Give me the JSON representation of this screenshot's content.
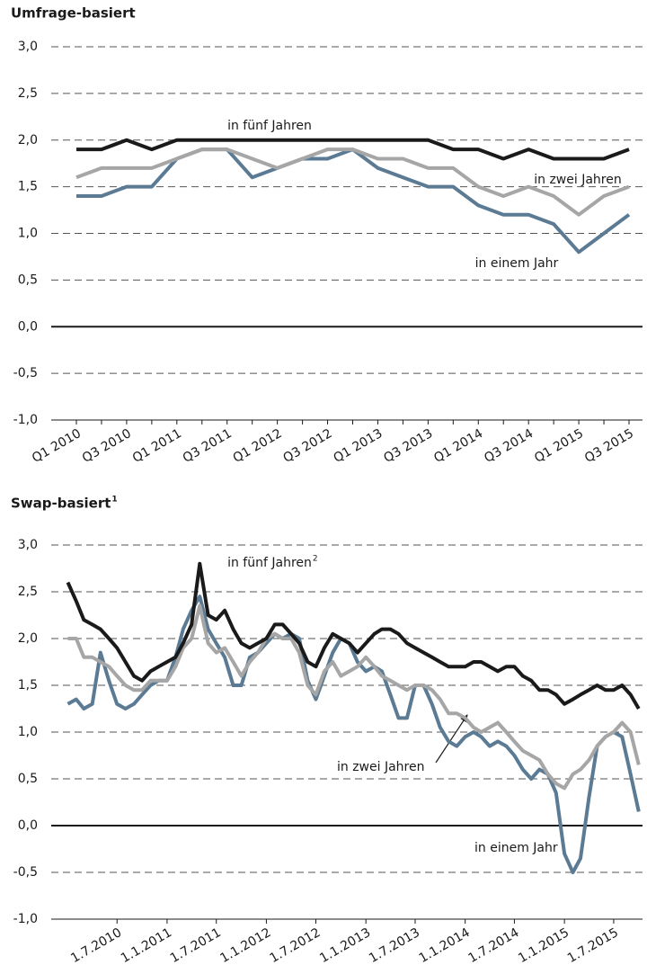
{
  "chart_data": [
    {
      "type": "line",
      "title": "Umfrage-basiert",
      "categories": [
        "Q1 2010",
        null,
        "Q3 2010",
        null,
        "Q1 2011",
        null,
        "Q3 2011",
        null,
        "Q1 2012",
        null,
        "Q3 2012",
        null,
        "Q1 2013",
        null,
        "Q3 2013",
        null,
        "Q1 2014",
        null,
        "Q3 2014",
        null,
        "Q1 2015",
        null,
        "Q3 2015"
      ],
      "series": [
        {
          "name": "in fünf Jahren",
          "color": "#1a1a1a",
          "values": [
            1.9,
            1.9,
            2.0,
            1.9,
            2.0,
            2.0,
            2.0,
            2.0,
            2.0,
            2.0,
            2.0,
            2.0,
            2.0,
            2.0,
            2.0,
            1.9,
            1.9,
            1.8,
            1.9,
            1.8,
            1.8,
            1.8,
            1.9
          ]
        },
        {
          "name": "in zwei Jahren",
          "color": "#a6a6a6",
          "values": [
            1.6,
            1.7,
            1.7,
            1.7,
            1.8,
            1.9,
            1.9,
            1.8,
            1.7,
            1.8,
            1.9,
            1.9,
            1.8,
            1.8,
            1.7,
            1.7,
            1.5,
            1.4,
            1.5,
            1.4,
            1.2,
            1.4,
            1.5
          ]
        },
        {
          "name": "in einem Jahr",
          "color": "#5b7a94",
          "values": [
            1.4,
            1.4,
            1.5,
            1.5,
            1.8,
            1.9,
            1.9,
            1.6,
            1.7,
            1.8,
            1.8,
            1.9,
            1.7,
            1.6,
            1.5,
            1.5,
            1.3,
            1.2,
            1.2,
            1.1,
            0.8,
            1.0,
            1.2
          ]
        }
      ],
      "ylim": [
        -1,
        3
      ],
      "yticks": [
        {
          "value": -1,
          "label": "-1,0"
        },
        {
          "value": -0.5,
          "label": "-0,5"
        },
        {
          "value": 0,
          "label": "0,0"
        },
        {
          "value": 0.5,
          "label": "0,5"
        },
        {
          "value": 1,
          "label": "1,0"
        },
        {
          "value": 1.5,
          "label": "1,5"
        },
        {
          "value": 2,
          "label": "2,0"
        },
        {
          "value": 2.5,
          "label": "2,5"
        },
        {
          "value": 3,
          "label": "3,0"
        }
      ],
      "grid": true
    },
    {
      "type": "line",
      "title": "Swap-basiert",
      "title_note": "1",
      "x": [
        "2010-01-01",
        "2010-02-01",
        "2010-03-01",
        "2010-04-01",
        "2010-05-01",
        "2010-06-01",
        "2010-07-01",
        "2010-08-01",
        "2010-09-01",
        "2010-10-01",
        "2010-11-01",
        "2010-12-01",
        "2011-01-01",
        "2011-02-01",
        "2011-03-01",
        "2011-04-01",
        "2011-05-01",
        "2011-06-01",
        "2011-07-01",
        "2011-08-01",
        "2011-09-01",
        "2011-10-01",
        "2011-11-01",
        "2011-12-01",
        "2012-01-01",
        "2012-02-01",
        "2012-03-01",
        "2012-04-01",
        "2012-05-01",
        "2012-06-01",
        "2012-07-01",
        "2012-08-01",
        "2012-09-01",
        "2012-10-01",
        "2012-11-01",
        "2012-12-01",
        "2013-01-01",
        "2013-02-01",
        "2013-03-01",
        "2013-04-01",
        "2013-05-01",
        "2013-06-01",
        "2013-07-01",
        "2013-08-01",
        "2013-09-01",
        "2013-10-01",
        "2013-11-01",
        "2013-12-01",
        "2014-01-01",
        "2014-02-01",
        "2014-03-01",
        "2014-04-01",
        "2014-05-01",
        "2014-06-01",
        "2014-07-01",
        "2014-08-01",
        "2014-09-01",
        "2014-10-01",
        "2014-11-01",
        "2014-12-01",
        "2015-01-01",
        "2015-02-01",
        "2015-03-01",
        "2015-04-01",
        "2015-05-01",
        "2015-06-01",
        "2015-07-01",
        "2015-08-01",
        "2015-09-01",
        "2015-10-01"
      ],
      "series": [
        {
          "name": "in fünf Jahren",
          "note": "2",
          "color": "#1a1a1a",
          "values": [
            2.6,
            2.4,
            2.2,
            2.15,
            2.1,
            2.0,
            1.9,
            1.75,
            1.6,
            1.55,
            1.65,
            1.7,
            1.75,
            1.8,
            1.95,
            2.15,
            2.8,
            2.25,
            2.2,
            2.3,
            2.1,
            1.95,
            1.9,
            1.95,
            2.0,
            2.15,
            2.15,
            2.05,
            1.95,
            1.75,
            1.7,
            1.9,
            2.05,
            2.0,
            1.95,
            1.85,
            1.95,
            2.05,
            2.1,
            2.1,
            2.05,
            1.95,
            1.9,
            1.85,
            1.8,
            1.75,
            1.7,
            1.7,
            1.7,
            1.75,
            1.75,
            1.7,
            1.65,
            1.7,
            1.7,
            1.6,
            1.55,
            1.45,
            1.45,
            1.4,
            1.3,
            1.35,
            1.4,
            1.45,
            1.5,
            1.45,
            1.45,
            1.5,
            1.4,
            1.25
          ]
        },
        {
          "name": "in zwei Jahren",
          "color": "#a6a6a6",
          "values": [
            2.0,
            2.0,
            1.8,
            1.8,
            1.75,
            1.7,
            1.6,
            1.5,
            1.45,
            1.45,
            1.55,
            1.55,
            1.55,
            1.7,
            1.9,
            2.0,
            2.35,
            1.95,
            1.85,
            1.9,
            1.75,
            1.6,
            1.75,
            1.85,
            2.0,
            2.05,
            2.0,
            2.0,
            1.85,
            1.5,
            1.4,
            1.65,
            1.75,
            1.6,
            1.65,
            1.7,
            1.8,
            1.7,
            1.6,
            1.55,
            1.5,
            1.45,
            1.5,
            1.5,
            1.45,
            1.35,
            1.2,
            1.2,
            1.15,
            1.05,
            1.0,
            1.05,
            1.1,
            1.0,
            0.9,
            0.8,
            0.75,
            0.7,
            0.55,
            0.45,
            0.4,
            0.55,
            0.6,
            0.7,
            0.85,
            0.95,
            1.0,
            1.1,
            1.0,
            0.65
          ]
        },
        {
          "name": "in einem Jahr",
          "color": "#5b7a94",
          "values": [
            1.3,
            1.35,
            1.25,
            1.3,
            1.85,
            1.55,
            1.3,
            1.25,
            1.3,
            1.4,
            1.5,
            1.55,
            1.55,
            1.8,
            2.1,
            2.3,
            2.45,
            2.1,
            1.95,
            1.8,
            1.5,
            1.5,
            1.8,
            1.85,
            1.95,
            2.05,
            2.0,
            2.05,
            2.0,
            1.55,
            1.35,
            1.6,
            1.85,
            2.0,
            1.95,
            1.75,
            1.65,
            1.7,
            1.65,
            1.4,
            1.15,
            1.15,
            1.5,
            1.5,
            1.3,
            1.05,
            0.9,
            0.85,
            0.95,
            1.0,
            0.95,
            0.85,
            0.9,
            0.85,
            0.75,
            0.6,
            0.5,
            0.6,
            0.55,
            0.35,
            -0.3,
            -0.5,
            -0.35,
            0.3,
            0.85,
            0.95,
            1.0,
            0.95,
            0.55,
            0.15
          ]
        }
      ],
      "xlim": [
        "2009-11-01",
        "2015-10-15"
      ],
      "xticks": [
        {
          "value": "2010-07-01",
          "label": "1.7.2010"
        },
        {
          "value": "2011-01-01",
          "label": "1.1.2011"
        },
        {
          "value": "2011-07-01",
          "label": "1.7.2011"
        },
        {
          "value": "2012-01-01",
          "label": "1.1.2012"
        },
        {
          "value": "2012-07-01",
          "label": "1.7.2012"
        },
        {
          "value": "2013-01-01",
          "label": "1.1.2013"
        },
        {
          "value": "2013-07-01",
          "label": "1.7.2013"
        },
        {
          "value": "2014-01-01",
          "label": "1.1.2014"
        },
        {
          "value": "2014-07-01",
          "label": "1.7.2014"
        },
        {
          "value": "2015-01-01",
          "label": "1.1.2015"
        },
        {
          "value": "2015-07-01",
          "label": "1.7.2015"
        }
      ],
      "ylim": [
        -1,
        3
      ],
      "yticks": [
        {
          "value": -1,
          "label": "-1,0"
        },
        {
          "value": -0.5,
          "label": "-0,5"
        },
        {
          "value": 0,
          "label": "0,0"
        },
        {
          "value": 0.5,
          "label": "0,5"
        },
        {
          "value": 1,
          "label": "1,0"
        },
        {
          "value": 1.5,
          "label": "1,5"
        },
        {
          "value": 2,
          "label": "2,0"
        },
        {
          "value": 2.5,
          "label": "2,5"
        },
        {
          "value": 3,
          "label": "3,0"
        }
      ],
      "grid": true
    }
  ]
}
